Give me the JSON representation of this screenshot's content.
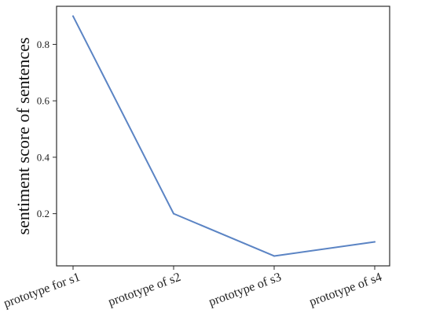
{
  "chart_data": {
    "type": "line",
    "categories": [
      "prototype for s1",
      "prototype of s2",
      "prototype of s3",
      "prototype of s4"
    ],
    "series": [
      {
        "values": [
          0.9,
          0.2,
          0.05,
          0.1
        ],
        "color": "#5b84c4"
      }
    ],
    "title": "",
    "xlabel": "",
    "ylabel": "sentiment score of sentences",
    "ylim": [
      0.015,
      0.935
    ],
    "yticks": [
      0.2,
      0.4,
      0.6,
      0.8
    ],
    "ytick_labels": [
      "0.2",
      "0.4",
      "0.6",
      "0.8"
    ],
    "grid": false,
    "legend": "none"
  }
}
